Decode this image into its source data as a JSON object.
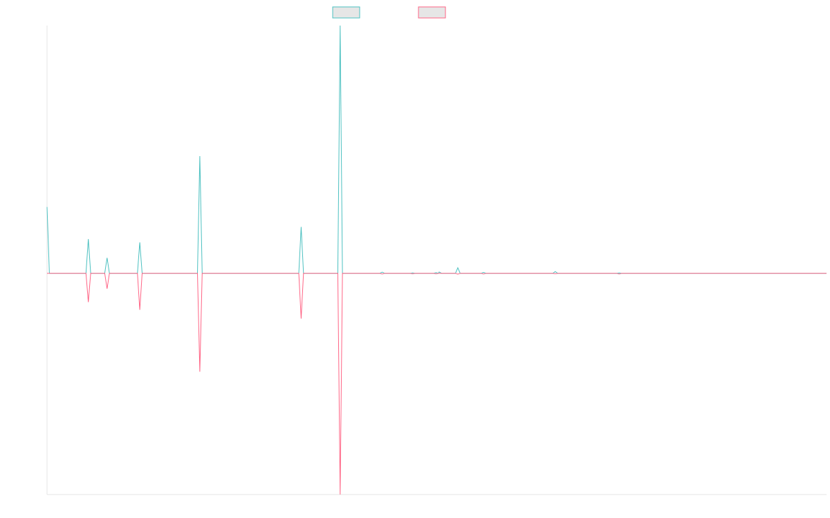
{
  "chart_data": {
    "type": "line",
    "title": "",
    "xlabel": "",
    "ylabel": "",
    "grid": false,
    "legend_position": "top-center",
    "ylim": [
      -1,
      1.12
    ],
    "xlim": [
      0,
      100
    ],
    "series": [
      {
        "color": "#4bc0c0",
        "fill": "#e6e6e6",
        "points": [
          [
            0,
            0.3
          ],
          [
            0.3,
            0
          ],
          [
            5,
            0
          ],
          [
            5.3,
            0.155
          ],
          [
            5.6,
            0
          ],
          [
            7.4,
            0
          ],
          [
            7.7,
            0.07
          ],
          [
            8,
            0
          ],
          [
            11.6,
            0
          ],
          [
            11.9,
            0.14
          ],
          [
            12.2,
            0
          ],
          [
            19.3,
            0
          ],
          [
            19.6,
            0.53
          ],
          [
            19.9,
            0
          ],
          [
            32.3,
            0
          ],
          [
            32.6,
            0.21
          ],
          [
            32.9,
            0
          ],
          [
            37.3,
            0
          ],
          [
            37.6,
            1.12
          ],
          [
            37.9,
            0
          ],
          [
            42.7,
            0
          ],
          [
            43,
            0.005
          ],
          [
            43.3,
            0
          ],
          [
            46.6,
            0
          ],
          [
            46.9,
            0.002
          ],
          [
            47.2,
            0
          ],
          [
            49.6,
            0
          ],
          [
            49.9,
            0.003
          ],
          [
            50.2,
            0
          ],
          [
            50.3,
            0.006
          ],
          [
            50.6,
            0
          ],
          [
            52.4,
            0
          ],
          [
            52.7,
            0.025
          ],
          [
            53,
            0
          ],
          [
            55.7,
            0
          ],
          [
            56,
            0.004
          ],
          [
            56.3,
            0
          ],
          [
            64.9,
            0
          ],
          [
            65.2,
            0.008
          ],
          [
            65.5,
            0
          ],
          [
            73.1,
            0
          ],
          [
            73.4,
            0.002
          ],
          [
            73.7,
            0
          ],
          [
            74.1,
            0
          ],
          [
            100,
            0
          ]
        ]
      },
      {
        "color": "#ff6384",
        "fill": "#e6e6e6",
        "points": [
          [
            0,
            0
          ],
          [
            5,
            0
          ],
          [
            5.3,
            -0.13
          ],
          [
            5.6,
            0
          ],
          [
            7.4,
            0
          ],
          [
            7.7,
            -0.07
          ],
          [
            8,
            0
          ],
          [
            11.6,
            0
          ],
          [
            11.9,
            -0.165
          ],
          [
            12.2,
            0
          ],
          [
            19.3,
            0
          ],
          [
            19.6,
            -0.445
          ],
          [
            19.9,
            0
          ],
          [
            32.3,
            0
          ],
          [
            32.6,
            -0.205
          ],
          [
            32.9,
            0
          ],
          [
            37.3,
            0
          ],
          [
            37.6,
            -1
          ],
          [
            37.9,
            0
          ],
          [
            42.7,
            0
          ],
          [
            43,
            -0.003
          ],
          [
            43.3,
            0
          ],
          [
            46.6,
            0
          ],
          [
            46.9,
            -0.002
          ],
          [
            47.2,
            0
          ],
          [
            49.6,
            0
          ],
          [
            49.9,
            -0.002
          ],
          [
            50.2,
            0
          ],
          [
            52.4,
            0
          ],
          [
            52.7,
            -0.004
          ],
          [
            53,
            0
          ],
          [
            55.7,
            0
          ],
          [
            56,
            -0.003
          ],
          [
            56.3,
            0
          ],
          [
            64.9,
            0
          ],
          [
            65.2,
            -0.002
          ],
          [
            65.5,
            0
          ],
          [
            73.1,
            0
          ],
          [
            73.4,
            -0.003
          ],
          [
            73.7,
            0
          ],
          [
            100,
            0
          ]
        ]
      }
    ]
  }
}
